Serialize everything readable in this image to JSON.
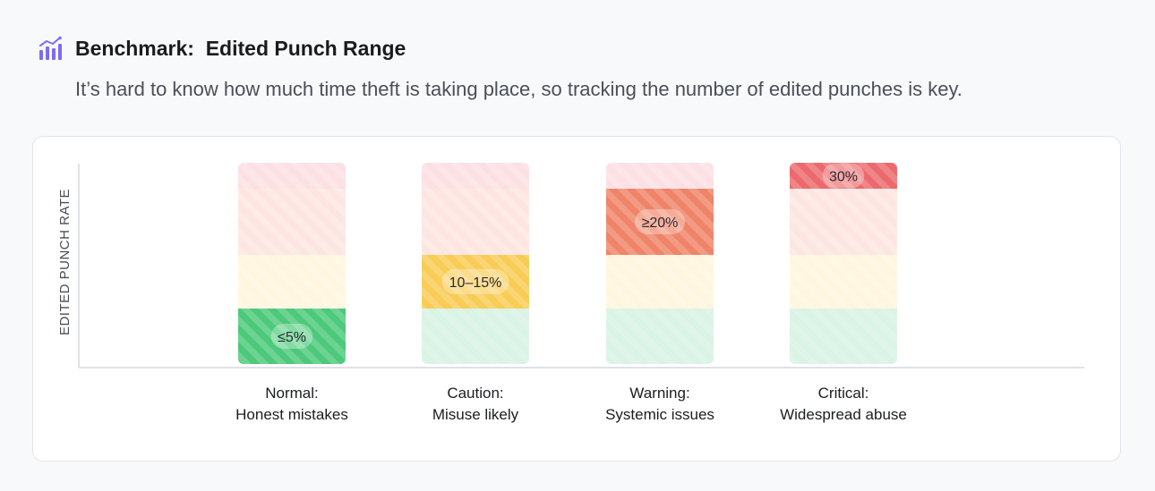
{
  "header": {
    "icon": "bar-chart-trend-icon",
    "title": "Benchmark:  Edited Punch Range",
    "subtitle": "It’s hard to know how much time theft is taking place, so tracking the number of edited punches is key."
  },
  "colors": {
    "green_light": "#d9f3e4",
    "green": "#4cc97a",
    "yellow_light": "#fff6df",
    "yellow": "#f8cc55",
    "orange_light": "#fde6e1",
    "orange": "#ef8468",
    "red_light": "#fde0e3",
    "red": "#ec6a6e",
    "icon": "#7b6df2"
  },
  "chart_data": {
    "type": "bar",
    "ylabel": "EDITED PUNCH RATE",
    "xlabel": "",
    "grid": false,
    "bands": [
      "≤5%",
      "10–15%",
      "≥20%",
      "30%"
    ],
    "categories": [
      {
        "line1": "Normal:",
        "line2": "Honest mistakes",
        "active_band": 0,
        "label": "≤5%"
      },
      {
        "line1": "Caution:",
        "line2": "Misuse likely",
        "active_band": 1,
        "label": "10–15%"
      },
      {
        "line1": "Warning:",
        "line2": "Systemic issues",
        "active_band": 2,
        "label": "≥20%"
      },
      {
        "line1": "Critical:",
        "line2": "Widespread abuse",
        "active_band": 3,
        "label": "30%"
      }
    ]
  }
}
